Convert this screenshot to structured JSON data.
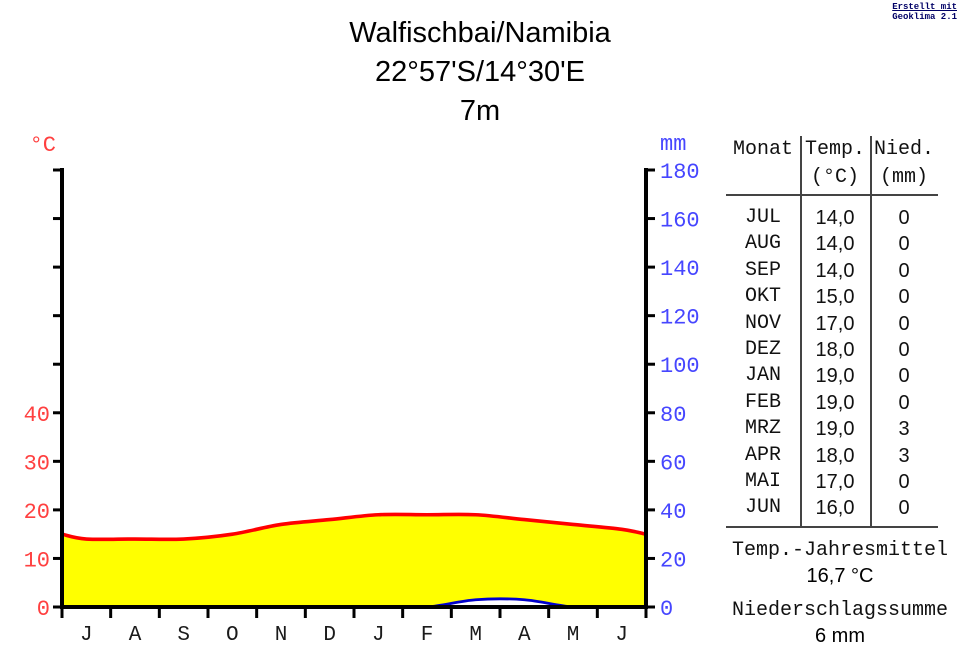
{
  "credit": {
    "line1": "Erstellt mit",
    "line2": "Geoklima 2.1",
    "color": "#000066"
  },
  "title": {
    "station": "Walfischbai/Namibia",
    "coordinates": "22°57'S/14°30'E",
    "elevation": "7m"
  },
  "chart_data": {
    "type": "line",
    "title": "Klimadiagramm Walfischbai/Namibia 22°57'S/14°30'E 7m",
    "x_tick_labels": [
      "J",
      "A",
      "S",
      "O",
      "N",
      "D",
      "J",
      "F",
      "M",
      "A",
      "M",
      "J"
    ],
    "months": [
      "JUL",
      "AUG",
      "SEP",
      "OKT",
      "NOV",
      "DEZ",
      "JAN",
      "FEB",
      "MRZ",
      "APR",
      "MAI",
      "JUN"
    ],
    "series": [
      {
        "name": "Temperatur",
        "unit": "°C",
        "axis": "left",
        "color": "#ff0000",
        "area_fill": "#ffff00",
        "values": [
          14,
          14,
          14,
          15,
          17,
          18,
          19,
          19,
          19,
          18,
          17,
          16
        ]
      },
      {
        "name": "Niederschlag",
        "unit": "mm",
        "axis": "right",
        "color": "#0000cc",
        "area_fill": "#ffffff",
        "values": [
          0,
          0,
          0,
          0,
          0,
          0,
          0,
          0,
          3,
          3,
          0,
          0
        ]
      }
    ],
    "left_axis": {
      "label": "°C",
      "range": [
        0,
        90
      ],
      "tick_interval": 10,
      "labeled_ticks": [
        0,
        10,
        20,
        30,
        40
      ],
      "label_color": "#ff4040"
    },
    "right_axis": {
      "label": "mm",
      "range": [
        0,
        180
      ],
      "tick_interval": 20,
      "labeled_ticks": [
        0,
        20,
        40,
        60,
        80,
        100,
        120,
        140,
        160,
        180
      ],
      "label_color": "#4646ff"
    },
    "axis_color": "#000000",
    "month_label_color": "#1a1a1a",
    "grid": false,
    "legend": "none"
  },
  "table": {
    "col1_header": "Monat",
    "col2_header": "Temp.",
    "col2_sub": "(°C)",
    "col3_header": "Nied.",
    "col3_sub": "(mm)",
    "rows": [
      {
        "monat": "JUL",
        "temp": "14,0",
        "nied": "0"
      },
      {
        "monat": "AUG",
        "temp": "14,0",
        "nied": "0"
      },
      {
        "monat": "SEP",
        "temp": "14,0",
        "nied": "0"
      },
      {
        "monat": "OKT",
        "temp": "15,0",
        "nied": "0"
      },
      {
        "monat": "NOV",
        "temp": "17,0",
        "nied": "0"
      },
      {
        "monat": "DEZ",
        "temp": "18,0",
        "nied": "0"
      },
      {
        "monat": "JAN",
        "temp": "19,0",
        "nied": "0"
      },
      {
        "monat": "FEB",
        "temp": "19,0",
        "nied": "0"
      },
      {
        "monat": "MRZ",
        "temp": "19,0",
        "nied": "3"
      },
      {
        "monat": "APR",
        "temp": "18,0",
        "nied": "3"
      },
      {
        "monat": "MAI",
        "temp": "17,0",
        "nied": "0"
      },
      {
        "monat": "JUN",
        "temp": "16,0",
        "nied": "0"
      }
    ],
    "summary_temp_label": "Temp.-Jahresmittel",
    "summary_temp_value": "16,7 °C",
    "summary_precip_label": "Niederschlagssumme",
    "summary_precip_value": "6 mm"
  }
}
